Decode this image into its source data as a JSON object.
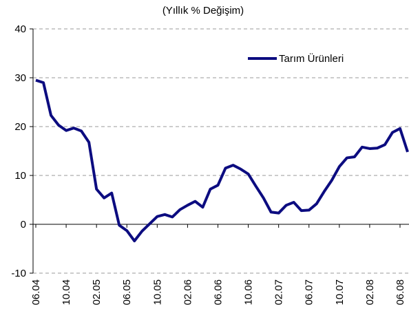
{
  "chart_data": {
    "type": "line",
    "title": "(Yıllık % Değişim)",
    "categories": [
      "06.04",
      null,
      null,
      null,
      "10.04",
      null,
      null,
      null,
      "02.05",
      null,
      null,
      null,
      "06.05",
      null,
      null,
      null,
      "10.05",
      null,
      null,
      null,
      "02.06",
      null,
      null,
      null,
      "06.06",
      null,
      null,
      null,
      "10.06",
      null,
      null,
      null,
      "02.07",
      null,
      null,
      null,
      "06.07",
      null,
      null,
      null,
      "10.07",
      null,
      null,
      null,
      "02.08",
      null,
      null,
      null,
      "06.08",
      null
    ],
    "series": [
      {
        "name": "Tarım Ürünleri",
        "color": "#0c0c80",
        "values": [
          29.5,
          29,
          22.3,
          20.3,
          19.2,
          19.7,
          19.1,
          16.8,
          7.2,
          5.4,
          6.4,
          -0.2,
          -1.3,
          -3.4,
          -1.4,
          0.1,
          1.6,
          2.0,
          1.5,
          3.0,
          3.9,
          4.7,
          3.5,
          7.2,
          8.0,
          11.5,
          12.1,
          11.3,
          10.3,
          7.8,
          5.4,
          2.5,
          2.3,
          3.9,
          4.5,
          2.8,
          2.9,
          4.2,
          6.7,
          9.0,
          11.8,
          13.6,
          13.8,
          15.8,
          15.5,
          15.6,
          16.3,
          18.8,
          19.6,
          14.8
        ]
      }
    ],
    "ylim": [
      -10,
      40
    ],
    "yticks": [
      -10,
      0,
      10,
      20,
      30,
      40
    ],
    "grid": true
  }
}
